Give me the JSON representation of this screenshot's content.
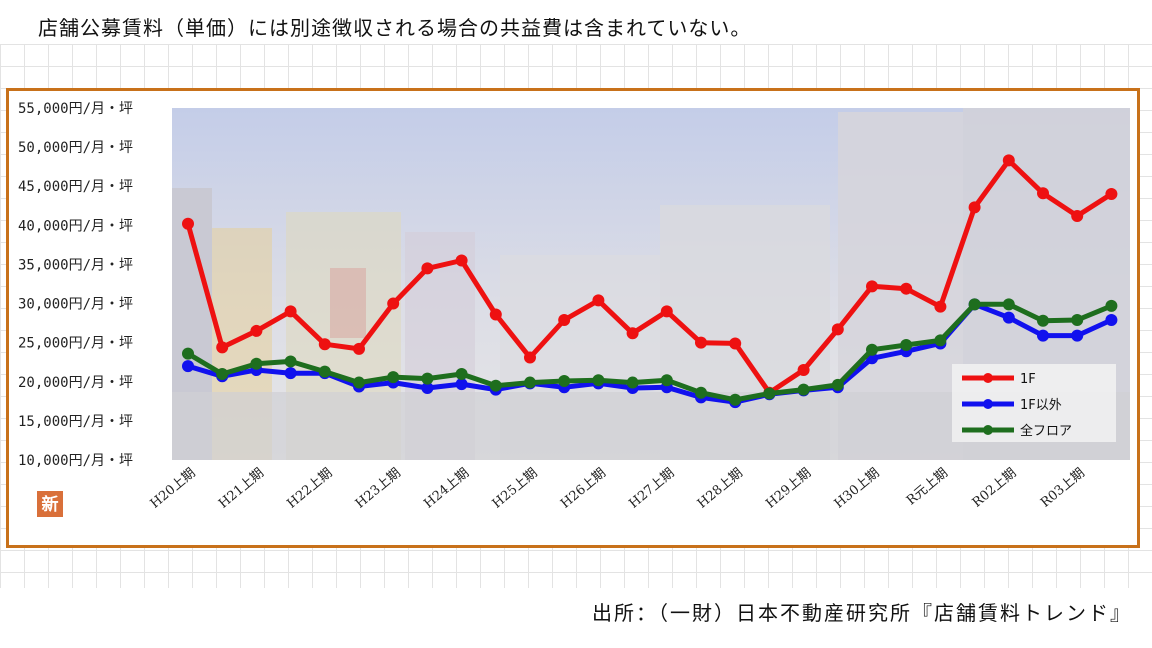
{
  "note": "店舗公募賃料（単価）には別途徴収される場合の共益費は含まれていない。",
  "source": "出所：（一財）日本不動産研究所『店舗賃料トレンド』",
  "badge": "新",
  "colors": {
    "frame": "#c8711a",
    "badge": "#d9703a"
  },
  "chart_data": {
    "type": "line",
    "ylim": [
      10000,
      55000
    ],
    "yticks": [
      {
        "value": 55000,
        "label": "55,000円/月・坪"
      },
      {
        "value": 50000,
        "label": "50,000円/月・坪"
      },
      {
        "value": 45000,
        "label": "45,000円/月・坪"
      },
      {
        "value": 40000,
        "label": "40,000円/月・坪"
      },
      {
        "value": 35000,
        "label": "35,000円/月・坪"
      },
      {
        "value": 30000,
        "label": "30,000円/月・坪"
      },
      {
        "value": 25000,
        "label": "25,000円/月・坪"
      },
      {
        "value": 20000,
        "label": "20,000円/月・坪"
      },
      {
        "value": 15000,
        "label": "15,000円/月・坪"
      },
      {
        "value": 10000,
        "label": "10,000円/月・坪"
      }
    ],
    "xtick_labels": [
      "H20上期",
      "H21上期",
      "H22上期",
      "H23上期",
      "H24上期",
      "H25上期",
      "H26上期",
      "H27上期",
      "H28上期",
      "H29上期",
      "H30上期",
      "R元上期",
      "R02上期",
      "R03上期"
    ],
    "n_points": 28,
    "legend_position": "bottom-right",
    "series": [
      {
        "name": "1F",
        "color": "#ee1111",
        "values": [
          40200,
          24400,
          26500,
          29000,
          24800,
          24200,
          30000,
          34500,
          35500,
          28600,
          23100,
          27900,
          30400,
          26200,
          29000,
          25000,
          24900,
          18600,
          21500,
          26700,
          32200,
          31900,
          29600,
          42300,
          48300,
          44100,
          41200,
          44000
        ]
      },
      {
        "name": "1F以外",
        "color": "#1111ee",
        "values": [
          22000,
          20700,
          21500,
          21100,
          21100,
          19400,
          19900,
          19200,
          19700,
          19000,
          19800,
          19300,
          19800,
          19200,
          19300,
          18000,
          17400,
          18400,
          18900,
          19300,
          23000,
          23900,
          24900,
          29900,
          28200,
          25900,
          25900,
          27900
        ]
      },
      {
        "name": "全フロア",
        "color": "#1e6e1e",
        "values": [
          23600,
          21000,
          22300,
          22600,
          21300,
          19900,
          20600,
          20400,
          21000,
          19500,
          19900,
          20100,
          20200,
          19900,
          20200,
          18600,
          17700,
          18500,
          19000,
          19600,
          24100,
          24700,
          25300,
          29900,
          29900,
          27800,
          27900,
          29700
        ]
      }
    ]
  }
}
